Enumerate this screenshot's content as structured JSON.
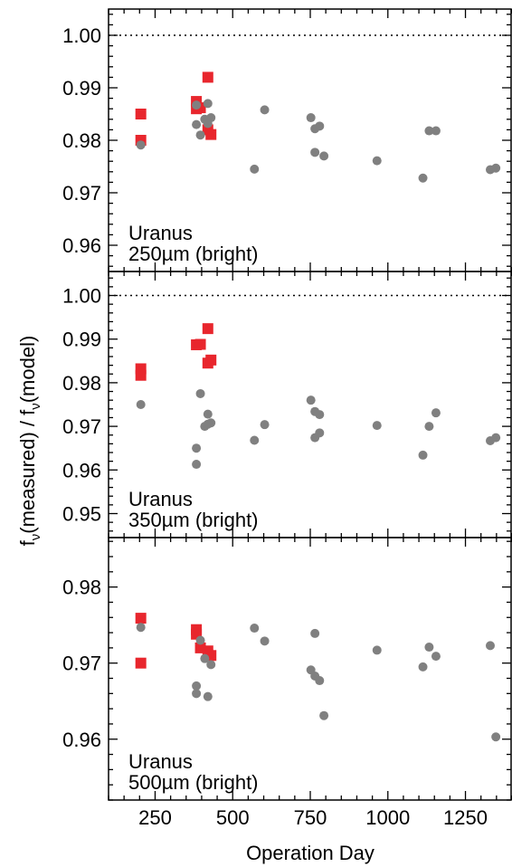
{
  "figure": {
    "xlabel": "Operation Day",
    "ylabel_parts": [
      "f",
      "ν",
      "(measured) / f",
      "ν",
      "(model)"
    ]
  },
  "colors": {
    "red": "#e8262d",
    "grey": "#808080",
    "axis": "#000000"
  },
  "chart_data": [
    {
      "type": "scatter",
      "title": "",
      "annotation": [
        "Uranus",
        "250µm (bright)"
      ],
      "xlim": [
        100,
        1400
      ],
      "ylim": [
        0.955,
        1.005
      ],
      "xticks": [
        250,
        500,
        750,
        1000,
        1250
      ],
      "yticks": [
        0.96,
        0.97,
        0.98,
        0.99,
        1.0
      ],
      "ytick_labels": [
        "0.96",
        "0.97",
        "0.98",
        "0.99",
        "1.00"
      ],
      "reference_line": 1.0,
      "series": [
        {
          "marker": "square",
          "color": "#e8262d",
          "points": [
            [
              204,
              0.985
            ],
            [
              204,
              0.98
            ],
            [
              383,
              0.9874
            ],
            [
              383,
              0.986
            ],
            [
              396,
              0.9862
            ],
            [
              420,
              0.992
            ],
            [
              420,
              0.982
            ],
            [
              430,
              0.9811
            ]
          ]
        },
        {
          "marker": "circle",
          "color": "#808080",
          "points": [
            [
              204,
              0.9791
            ],
            [
              383,
              0.9867
            ],
            [
              383,
              0.983
            ],
            [
              396,
              0.981
            ],
            [
              410,
              0.984
            ],
            [
              420,
              0.987
            ],
            [
              420,
              0.9832
            ],
            [
              430,
              0.9843
            ],
            [
              570,
              0.9745
            ],
            [
              603,
              0.9858
            ],
            [
              752,
              0.9843
            ],
            [
              765,
              0.9822
            ],
            [
              780,
              0.9827
            ],
            [
              765,
              0.9777
            ],
            [
              794,
              0.977
            ],
            [
              965,
              0.9761
            ],
            [
              1113,
              0.9728
            ],
            [
              1133,
              0.9818
            ],
            [
              1155,
              0.9818
            ],
            [
              1330,
              0.9744
            ],
            [
              1348,
              0.9747
            ]
          ]
        }
      ]
    },
    {
      "type": "scatter",
      "title": "",
      "annotation": [
        "Uranus",
        "350µm (bright)"
      ],
      "xlim": [
        100,
        1400
      ],
      "ylim": [
        0.9445,
        1.0055
      ],
      "xticks": [
        250,
        500,
        750,
        1000,
        1250
      ],
      "yticks": [
        0.95,
        0.96,
        0.97,
        0.98,
        0.99,
        1.0
      ],
      "ytick_labels": [
        "0.95",
        "0.96",
        "0.97",
        "0.98",
        "0.99",
        "1.00"
      ],
      "reference_line": 1.0,
      "series": [
        {
          "marker": "square",
          "color": "#e8262d",
          "points": [
            [
              204,
              0.9832
            ],
            [
              204,
              0.9817
            ],
            [
              383,
              0.9887
            ],
            [
              396,
              0.9888
            ],
            [
              420,
              0.9924
            ],
            [
              420,
              0.9845
            ],
            [
              430,
              0.9852
            ]
          ]
        },
        {
          "marker": "circle",
          "color": "#808080",
          "points": [
            [
              204,
              0.975
            ],
            [
              383,
              0.965
            ],
            [
              383,
              0.9613
            ],
            [
              396,
              0.9775
            ],
            [
              410,
              0.97
            ],
            [
              420,
              0.9728
            ],
            [
              420,
              0.9705
            ],
            [
              430,
              0.9708
            ],
            [
              570,
              0.9668
            ],
            [
              603,
              0.9704
            ],
            [
              752,
              0.976
            ],
            [
              765,
              0.9734
            ],
            [
              780,
              0.9727
            ],
            [
              765,
              0.9674
            ],
            [
              780,
              0.9685
            ],
            [
              965,
              0.9702
            ],
            [
              1113,
              0.9634
            ],
            [
              1133,
              0.97
            ],
            [
              1155,
              0.9731
            ],
            [
              1330,
              0.9667
            ],
            [
              1348,
              0.9674
            ]
          ]
        }
      ]
    },
    {
      "type": "scatter",
      "title": "",
      "annotation": [
        "Uranus",
        "500µm (bright)"
      ],
      "xlim": [
        100,
        1400
      ],
      "ylim": [
        0.952,
        0.9865
      ],
      "xticks": [
        250,
        500,
        750,
        1000,
        1250
      ],
      "yticks": [
        0.96,
        0.97,
        0.98
      ],
      "ytick_labels": [
        "0.96",
        "0.97",
        "0.98"
      ],
      "reference_line": null,
      "series": [
        {
          "marker": "square",
          "color": "#e8262d",
          "points": [
            [
              204,
              0.9759
            ],
            [
              204,
              0.97
            ],
            [
              383,
              0.9744
            ],
            [
              383,
              0.9738
            ],
            [
              396,
              0.972
            ],
            [
              420,
              0.9716
            ],
            [
              430,
              0.971
            ]
          ]
        },
        {
          "marker": "circle",
          "color": "#808080",
          "points": [
            [
              204,
              0.9747
            ],
            [
              383,
              0.967
            ],
            [
              383,
              0.966
            ],
            [
              396,
              0.973
            ],
            [
              410,
              0.9706
            ],
            [
              420,
              0.9656
            ],
            [
              430,
              0.9698
            ],
            [
              570,
              0.9746
            ],
            [
              603,
              0.9729
            ],
            [
              752,
              0.9691
            ],
            [
              765,
              0.9683
            ],
            [
              780,
              0.9677
            ],
            [
              765,
              0.9739
            ],
            [
              794,
              0.9631
            ],
            [
              965,
              0.9717
            ],
            [
              1113,
              0.9695
            ],
            [
              1133,
              0.9721
            ],
            [
              1155,
              0.9709
            ],
            [
              1330,
              0.9723
            ],
            [
              1348,
              0.9603
            ]
          ]
        }
      ]
    }
  ]
}
